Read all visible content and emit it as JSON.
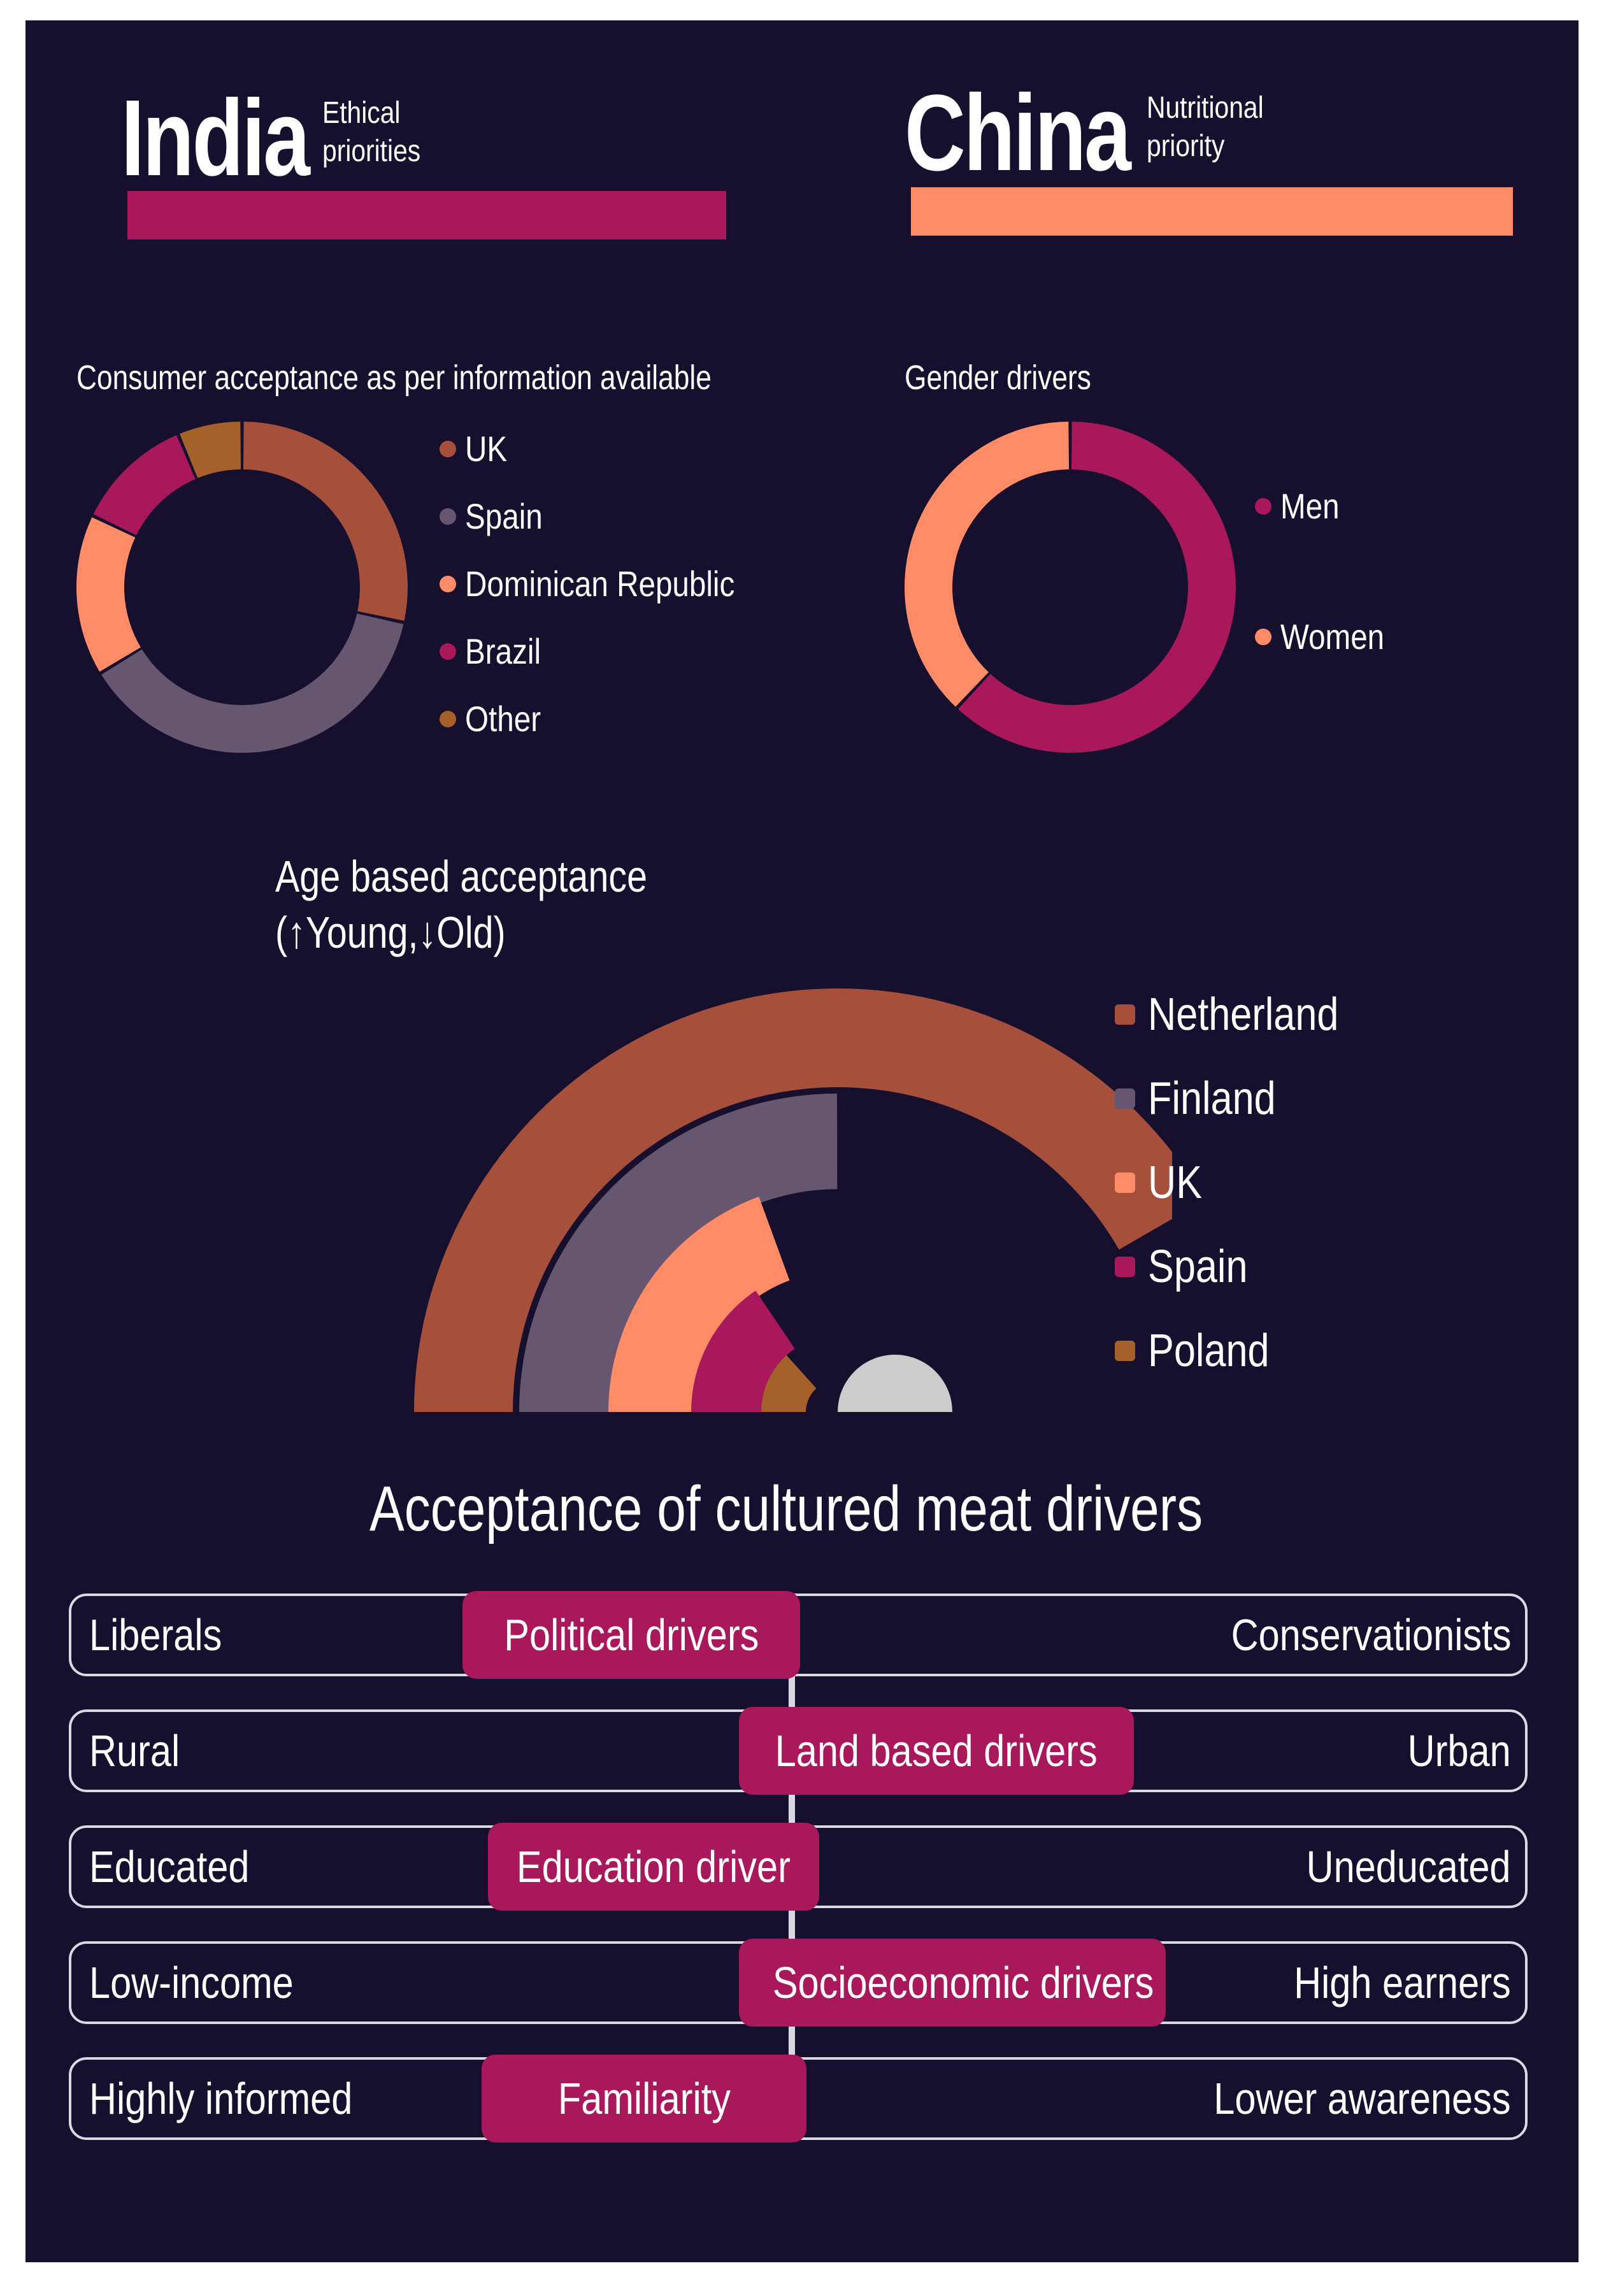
{
  "headers": {
    "left": {
      "country": "India",
      "subtitle_line1": "Ethical",
      "subtitle_line2": "priorities",
      "color": "#a8185a"
    },
    "right": {
      "country": "China",
      "subtitle_line1": "Nutritional",
      "subtitle_line2": "priority",
      "color": "#ff8c66"
    }
  },
  "chart_data": [
    {
      "type": "pie",
      "variant": "donut",
      "title": "Consumer acceptance as per information available",
      "categories": [
        "UK",
        "Spain",
        "Dominican Republic",
        "Brazil",
        "Other"
      ],
      "values": [
        27,
        36,
        15,
        11,
        6
      ],
      "colors": [
        "#a6503c",
        "#66566f",
        "#ff8c66",
        "#a8185a",
        "#a6602a"
      ]
    },
    {
      "type": "pie",
      "variant": "donut",
      "title": "Gender drivers",
      "categories": [
        "Men",
        "Women"
      ],
      "values": [
        62,
        38
      ],
      "colors": [
        "#a8185a",
        "#ff8c66"
      ]
    },
    {
      "type": "bar",
      "variant": "radial",
      "title_line1": "Age based acceptance",
      "title_line2": "(↑Young,↓Old)",
      "categories": [
        "Netherland",
        "Finland",
        "UK",
        "Spain",
        "Poland"
      ],
      "values": [
        155,
        90,
        70,
        56,
        48
      ],
      "colors": [
        "#a6503c",
        "#66566f",
        "#ff8c66",
        "#a8185a",
        "#a6602a"
      ],
      "center_color": "#cccccc"
    }
  ],
  "drivers": {
    "title": "Acceptance of cultured meat drivers",
    "rows": [
      {
        "left": "Liberals",
        "pill": "Political drivers",
        "right": "Conservationists"
      },
      {
        "left": "Rural",
        "pill": "Land based drivers",
        "right": "Urban"
      },
      {
        "left": "Educated",
        "pill": "Education driver",
        "right": "Uneducated"
      },
      {
        "left": "Low-income",
        "pill": "Socioeconomic drivers",
        "right": "High earners"
      },
      {
        "left": "Highly informed",
        "pill": "Familiarity",
        "right": "Lower awareness"
      }
    ]
  }
}
